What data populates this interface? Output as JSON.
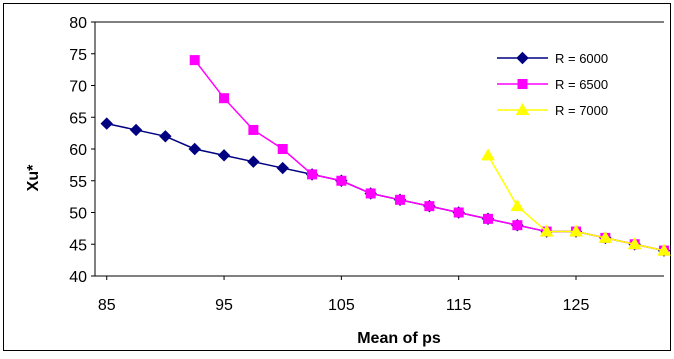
{
  "chart_data": {
    "type": "line",
    "title": "",
    "xlabel": "Mean of ps",
    "ylabel": "Xu*",
    "xlim": [
      84,
      132.5
    ],
    "ylim": [
      40,
      80
    ],
    "xticks": [
      85,
      95,
      105,
      115,
      125
    ],
    "yticks": [
      40,
      45,
      50,
      55,
      60,
      65,
      70,
      75,
      80
    ],
    "grid": "horizontal-top-only",
    "legend": "top-right",
    "series": [
      {
        "name": "R = 6000",
        "color": "#000080",
        "marker": "diamond",
        "points": [
          [
            85.0,
            64.0
          ],
          [
            87.5,
            63.0
          ],
          [
            90.0,
            62.0
          ],
          [
            92.5,
            60.0
          ],
          [
            95.0,
            59.0
          ],
          [
            97.5,
            58.0
          ],
          [
            100.0,
            57.0
          ],
          [
            102.5,
            56.0
          ],
          [
            105.0,
            55.0
          ],
          [
            107.5,
            53.0
          ],
          [
            110.0,
            52.0
          ],
          [
            112.5,
            51.0
          ],
          [
            115.0,
            50.0
          ],
          [
            117.5,
            49.0
          ],
          [
            120.0,
            48.0
          ],
          [
            122.5,
            47.0
          ],
          [
            125.0,
            47.0
          ],
          [
            127.5,
            46.0
          ],
          [
            130.0,
            45.0
          ],
          [
            132.5,
            44.0
          ]
        ]
      },
      {
        "name": "R = 6500",
        "color": "#FF00FF",
        "marker": "square",
        "points": [
          [
            92.5,
            74.0
          ],
          [
            95.0,
            68.0
          ],
          [
            97.5,
            63.0
          ],
          [
            100.0,
            60.0
          ],
          [
            102.5,
            56.0
          ],
          [
            105.0,
            55.0
          ],
          [
            107.5,
            53.0
          ],
          [
            110.0,
            52.0
          ],
          [
            112.5,
            51.0
          ],
          [
            115.0,
            50.0
          ],
          [
            117.5,
            49.0
          ],
          [
            120.0,
            48.0
          ],
          [
            122.5,
            47.0
          ],
          [
            125.0,
            47.0
          ],
          [
            127.5,
            46.0
          ],
          [
            130.0,
            45.0
          ],
          [
            132.5,
            44.0
          ]
        ]
      },
      {
        "name": "R = 7000",
        "color": "#FFFF00",
        "marker": "triangle",
        "points": [
          [
            117.5,
            59.0
          ],
          [
            120.0,
            51.0
          ],
          [
            122.5,
            47.0
          ],
          [
            125.0,
            47.0
          ],
          [
            127.5,
            46.0
          ],
          [
            130.0,
            45.0
          ],
          [
            132.5,
            44.0
          ]
        ]
      }
    ]
  }
}
